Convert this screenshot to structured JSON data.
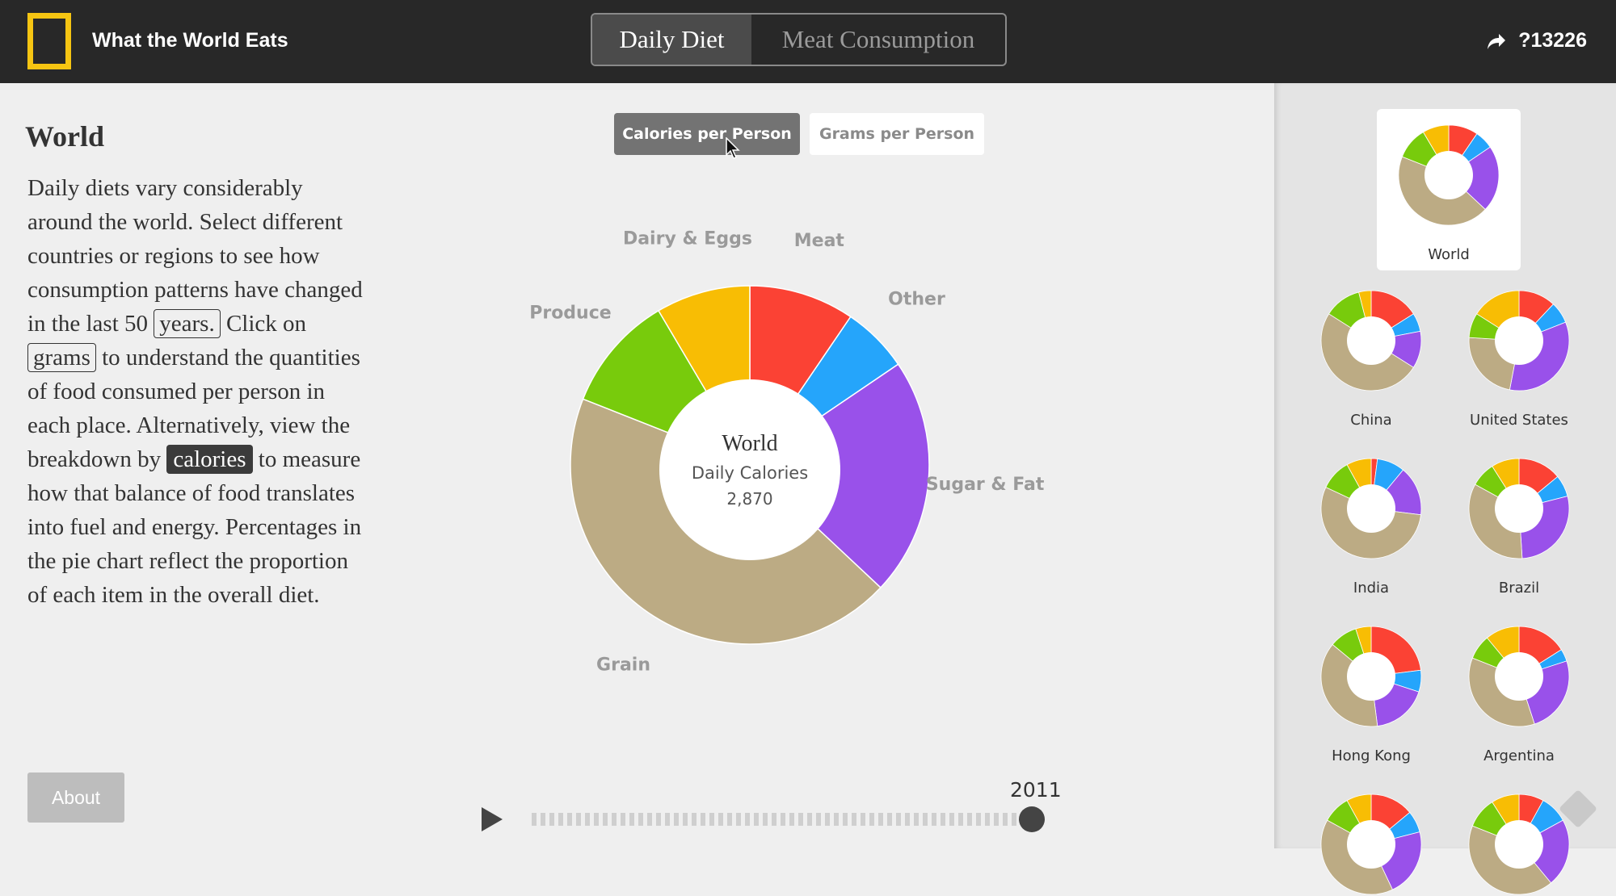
{
  "header": {
    "app_title": "What the World Eats",
    "tabs": [
      {
        "label": "Daily Diet",
        "active": true
      },
      {
        "label": "Meat Consumption",
        "active": false
      }
    ],
    "share_count": "?13226"
  },
  "content": {
    "region_title": "World",
    "description": {
      "part1": "Daily diets vary considerably around the world. Select different countries or regions to see how consumption patterns have changed in the last 50",
      "kw_years": "years.",
      "part2": "Click on",
      "kw_grams": "grams",
      "part3": "to understand the quantities of food consumed per person in each place. Alternatively, view the breakdown by",
      "kw_calories": "calories",
      "part4": "to measure how that balance of food translates into fuel and energy. Percentages in the pie chart reflect the proportion of each item in the overall diet."
    },
    "about_label": "About"
  },
  "toggles": {
    "calories_label": "Calories per Person",
    "grams_label": "Grams per Person"
  },
  "center": {
    "region": "World",
    "metric": "Daily Calories",
    "value": "2,870"
  },
  "timeline": {
    "year": "2011",
    "progress": 1.0
  },
  "colors": {
    "meat": "#fb4234",
    "other": "#25a5fb",
    "sugar_fat": "#9951ea",
    "grain": "#bcab84",
    "produce": "#78cb0c",
    "dairy_eggs": "#f8bd04"
  },
  "chart_data": {
    "type": "pie",
    "title": "",
    "categories": [
      "Meat",
      "Other",
      "Sugar & Fat",
      "Grain",
      "Produce",
      "Dairy & Eggs"
    ],
    "values": [
      9.5,
      6.0,
      21.5,
      44.0,
      10.5,
      8.5
    ],
    "unit": "percent of daily calories (estimated)",
    "donut": true
  },
  "sidebar": {
    "items": [
      {
        "label": "World",
        "selected": true,
        "values": [
          9.5,
          6.0,
          21.5,
          44.0,
          10.5,
          8.5
        ]
      },
      {
        "label": "China",
        "selected": false,
        "values": [
          16,
          6,
          12,
          50,
          12,
          4
        ]
      },
      {
        "label": "United States",
        "selected": false,
        "values": [
          12,
          7,
          34,
          23,
          8,
          16
        ]
      },
      {
        "label": "India",
        "selected": false,
        "values": [
          2,
          9,
          16,
          55,
          10,
          8
        ]
      },
      {
        "label": "Brazil",
        "selected": false,
        "values": [
          14,
          7,
          28,
          34,
          8,
          9
        ]
      },
      {
        "label": "Hong Kong",
        "selected": false,
        "values": [
          23,
          7,
          18,
          38,
          9,
          5
        ]
      },
      {
        "label": "Argentina",
        "selected": false,
        "values": [
          16,
          4,
          25,
          36,
          8,
          11
        ]
      },
      {
        "label": "",
        "selected": false,
        "values": [
          14,
          7,
          22,
          40,
          9,
          8
        ]
      },
      {
        "label": "",
        "selected": false,
        "values": [
          8,
          9,
          22,
          42,
          10,
          9
        ]
      }
    ]
  }
}
